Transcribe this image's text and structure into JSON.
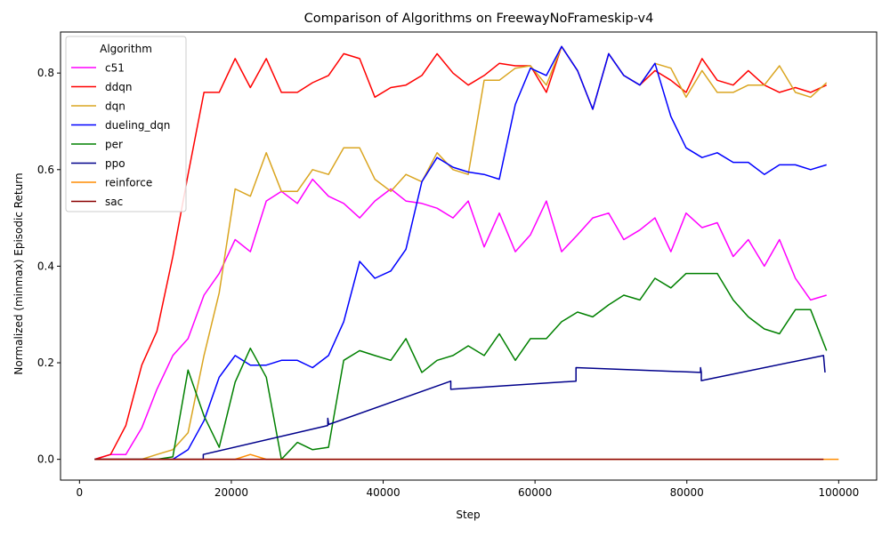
{
  "chart_data": {
    "type": "line",
    "title": "Comparison of Algorithms on FreewayNoFrameskip-v4",
    "xlabel": "Step",
    "ylabel": "Normalized (minmax) Episodic Return",
    "xlim": [
      -2500,
      105000
    ],
    "ylim": [
      -0.043,
      0.885
    ],
    "xticks": [
      0,
      20000,
      40000,
      60000,
      80000,
      100000
    ],
    "xtick_labels": [
      "0",
      "20000",
      "40000",
      "60000",
      "80000",
      "100000"
    ],
    "yticks": [
      0.0,
      0.2,
      0.4,
      0.6,
      0.8
    ],
    "ytick_labels": [
      "0.0",
      "0.2",
      "0.4",
      "0.6",
      "0.8"
    ],
    "grid": false,
    "legend": {
      "title": "Algorithm",
      "placement": "top-left"
    },
    "series": [
      {
        "name": "c51",
        "color": "#ff00ff",
        "x": [
          2000,
          4100,
          6100,
          8200,
          10200,
          12300,
          14300,
          16400,
          18400,
          20500,
          22500,
          24600,
          26600,
          28700,
          30700,
          32800,
          34800,
          36900,
          38900,
          41000,
          43000,
          45100,
          47100,
          49200,
          51200,
          53300,
          55300,
          57400,
          59400,
          61500,
          63500,
          65600,
          67600,
          69700,
          71700,
          73800,
          75800,
          77900,
          79900,
          82000,
          84000,
          86100,
          88100,
          90200,
          92200,
          94300,
          96300,
          98400
        ],
        "y": [
          0,
          0.01,
          0.01,
          0.065,
          0.145,
          0.215,
          0.25,
          0.34,
          0.385,
          0.455,
          0.43,
          0.535,
          0.555,
          0.53,
          0.58,
          0.545,
          0.53,
          0.5,
          0.535,
          0.56,
          0.535,
          0.53,
          0.52,
          0.5,
          0.535,
          0.44,
          0.51,
          0.43,
          0.465,
          0.535,
          0.43,
          0.465,
          0.5,
          0.51,
          0.455,
          0.475,
          0.5,
          0.43,
          0.51,
          0.48,
          0.49,
          0.42,
          0.455,
          0.4,
          0.455,
          0.375,
          0.33,
          0.34
        ]
      },
      {
        "name": "ddqn",
        "color": "#ff0000",
        "x": [
          2000,
          4100,
          6100,
          8200,
          10200,
          12300,
          14300,
          16400,
          18400,
          20500,
          22500,
          24600,
          26600,
          28700,
          30700,
          32800,
          34800,
          36900,
          38900,
          41000,
          43000,
          45100,
          47100,
          49200,
          51200,
          53300,
          55300,
          57400,
          59400,
          61500,
          63500,
          65600,
          67600,
          69700,
          71700,
          73800,
          75800,
          77900,
          79900,
          82000,
          84000,
          86100,
          88100,
          90200,
          92200,
          94300,
          96300,
          98400
        ],
        "y": [
          0,
          0.01,
          0.07,
          0.195,
          0.265,
          0.42,
          0.59,
          0.76,
          0.76,
          0.83,
          0.77,
          0.83,
          0.76,
          0.76,
          0.78,
          0.795,
          0.84,
          0.83,
          0.75,
          0.77,
          0.775,
          0.795,
          0.84,
          0.8,
          0.775,
          0.795,
          0.82,
          0.815,
          0.815,
          0.76,
          0.855,
          0.805,
          0.725,
          0.84,
          0.795,
          0.775,
          0.805,
          0.785,
          0.76,
          0.83,
          0.785,
          0.775,
          0.805,
          0.775,
          0.76,
          0.77,
          0.76,
          0.775
        ]
      },
      {
        "name": "dqn",
        "color": "#daa520",
        "x": [
          2000,
          4100,
          6100,
          8200,
          10200,
          12300,
          14300,
          16400,
          18400,
          20500,
          22500,
          24600,
          26600,
          28700,
          30700,
          32800,
          34800,
          36900,
          38900,
          41000,
          43000,
          45100,
          47100,
          49200,
          51200,
          53300,
          55300,
          57400,
          59400,
          61500,
          63500,
          65600,
          67600,
          69700,
          71700,
          73800,
          75800,
          77900,
          79900,
          82000,
          84000,
          86100,
          88100,
          90200,
          92200,
          94300,
          96300,
          98400
        ],
        "y": [
          0,
          0,
          0,
          0,
          0.01,
          0.02,
          0.055,
          0.215,
          0.345,
          0.56,
          0.545,
          0.635,
          0.555,
          0.555,
          0.6,
          0.59,
          0.645,
          0.645,
          0.58,
          0.555,
          0.59,
          0.575,
          0.635,
          0.6,
          0.59,
          0.785,
          0.785,
          0.81,
          0.815,
          0.775,
          0.855,
          0.805,
          0.725,
          0.84,
          0.795,
          0.775,
          0.82,
          0.81,
          0.75,
          0.805,
          0.76,
          0.76,
          0.775,
          0.775,
          0.815,
          0.76,
          0.75,
          0.78
        ]
      },
      {
        "name": "dueling_dqn",
        "color": "#0000ff",
        "x": [
          2000,
          4100,
          6100,
          8200,
          10200,
          12300,
          14300,
          16400,
          18400,
          20500,
          22500,
          24600,
          26600,
          28700,
          30700,
          32800,
          34800,
          36900,
          38900,
          41000,
          43000,
          45100,
          47100,
          49200,
          51200,
          53300,
          55300,
          57400,
          59400,
          61500,
          63500,
          65600,
          67600,
          69700,
          71700,
          73800,
          75800,
          77900,
          79900,
          82000,
          84000,
          86100,
          88100,
          90200,
          92200,
          94300,
          96300,
          98400
        ],
        "y": [
          0,
          0,
          0,
          0,
          0,
          0,
          0.02,
          0.08,
          0.17,
          0.215,
          0.195,
          0.195,
          0.205,
          0.205,
          0.19,
          0.215,
          0.285,
          0.41,
          0.375,
          0.39,
          0.435,
          0.575,
          0.625,
          0.605,
          0.595,
          0.59,
          0.58,
          0.735,
          0.81,
          0.795,
          0.855,
          0.805,
          0.725,
          0.84,
          0.795,
          0.775,
          0.82,
          0.71,
          0.645,
          0.625,
          0.635,
          0.615,
          0.615,
          0.59,
          0.61,
          0.61,
          0.6,
          0.61
        ]
      },
      {
        "name": "per",
        "color": "#008000",
        "x": [
          2000,
          4100,
          6100,
          8200,
          10200,
          12300,
          14300,
          16400,
          18400,
          20500,
          22500,
          24600,
          26600,
          28700,
          30700,
          32800,
          34800,
          36900,
          38900,
          41000,
          43000,
          45100,
          47100,
          49200,
          51200,
          53300,
          55300,
          57400,
          59400,
          61500,
          63500,
          65600,
          67600,
          69700,
          71700,
          73800,
          75800,
          77900,
          79900,
          82000,
          84000,
          86100,
          88100,
          90200,
          92200,
          94300,
          96300,
          98400
        ],
        "y": [
          0,
          0,
          0,
          0,
          0,
          0.005,
          0.185,
          0.09,
          0.025,
          0.16,
          0.23,
          0.17,
          0.0,
          0.035,
          0.02,
          0.025,
          0.205,
          0.225,
          0.215,
          0.205,
          0.25,
          0.18,
          0.205,
          0.215,
          0.235,
          0.215,
          0.26,
          0.205,
          0.25,
          0.25,
          0.285,
          0.305,
          0.295,
          0.32,
          0.34,
          0.33,
          0.375,
          0.355,
          0.385,
          0.385,
          0.385,
          0.33,
          0.295,
          0.27,
          0.26,
          0.31,
          0.31,
          0.225
        ]
      },
      {
        "name": "ppo",
        "color": "#00008b",
        "x": [
          2000,
          16300,
          16300,
          32700,
          32700,
          32800,
          32800,
          48900,
          48900,
          65400,
          65400,
          81800,
          81800,
          81900,
          81900,
          98000,
          98200
        ],
        "y": [
          0,
          0,
          0.01,
          0.07,
          0.085,
          0.075,
          0.072,
          0.162,
          0.145,
          0.162,
          0.19,
          0.18,
          0.19,
          0.18,
          0.163,
          0.215,
          0.18
        ]
      },
      {
        "name": "reinforce",
        "color": "#ff8c00",
        "x": [
          2000,
          16400,
          18400,
          20500,
          22500,
          24600,
          26600,
          100000
        ],
        "y": [
          0,
          0,
          0,
          0,
          0.01,
          0,
          0,
          0
        ]
      },
      {
        "name": "sac",
        "color": "#8b0000",
        "x": [
          2000,
          98000
        ],
        "y": [
          0,
          0
        ]
      }
    ]
  }
}
